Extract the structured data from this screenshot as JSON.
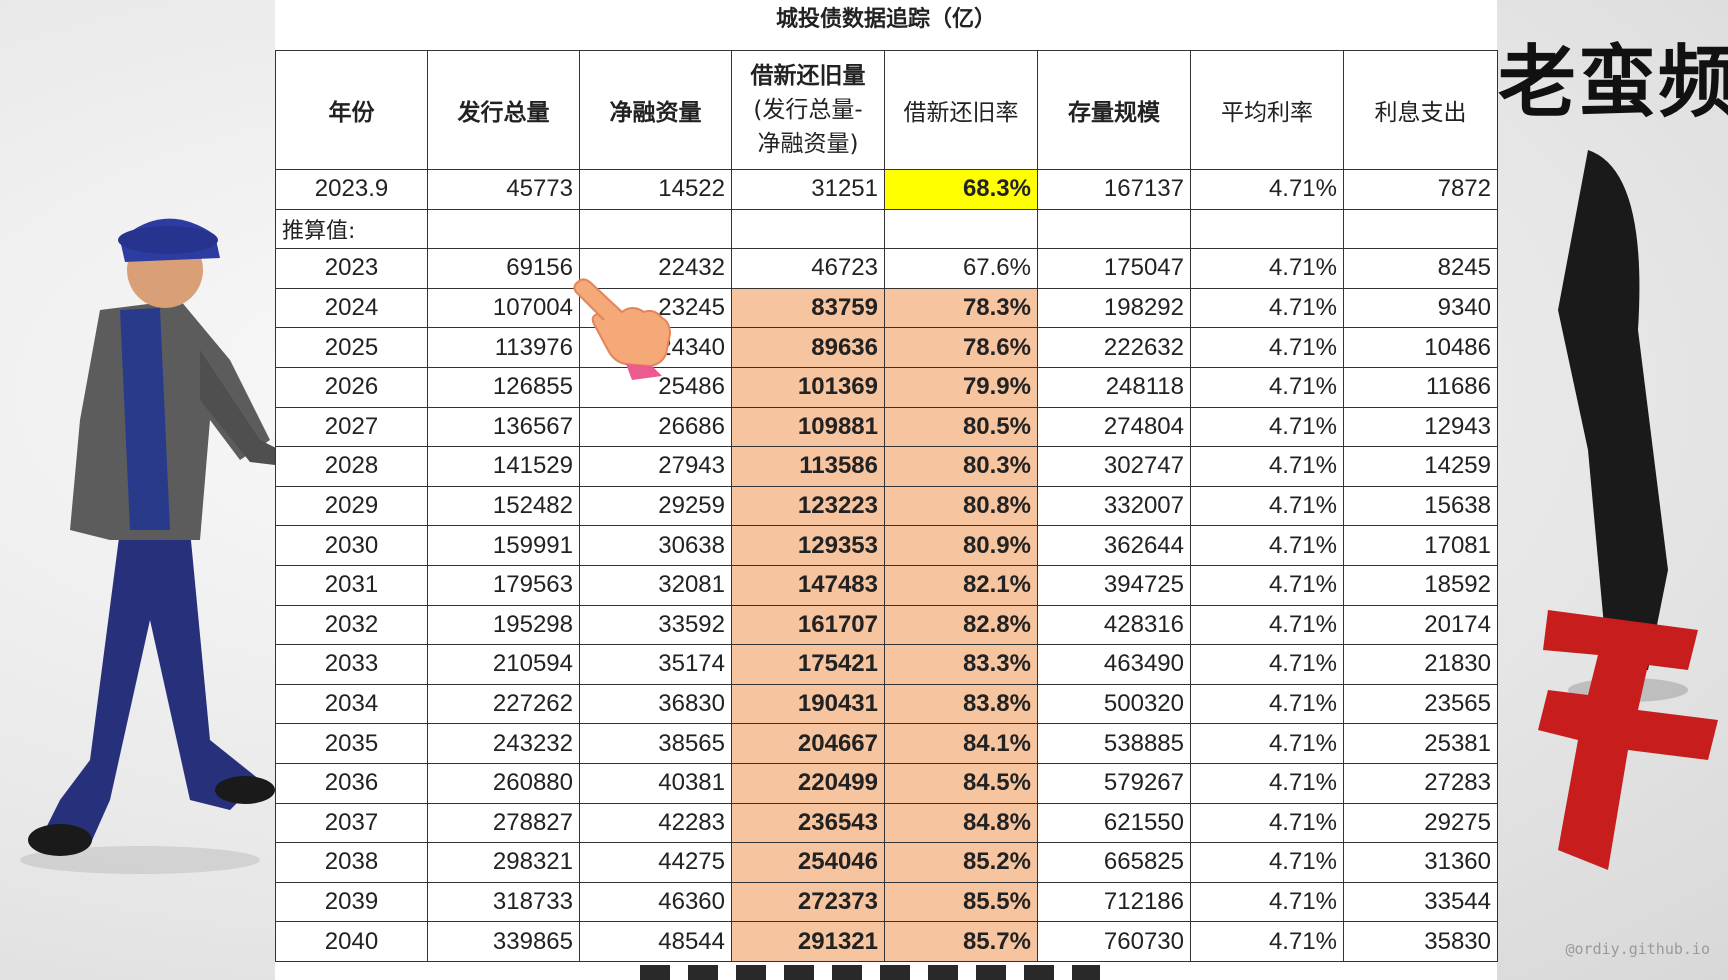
{
  "title": "城投债数据追踪（亿）",
  "decor": {
    "calligraphy": "老蛮频",
    "watermark": "@ordiy.github.io"
  },
  "headers": {
    "year": "年份",
    "issuance": "发行总量",
    "net_financing": "净融资量",
    "refinance_line1": "借新还旧量",
    "refinance_line2": "(发行总量-",
    "refinance_line3": "净融资量)",
    "refinance_rate": "借新还旧率",
    "stock": "存量规模",
    "avg_rate": "平均利率",
    "interest": "利息支出"
  },
  "actual_row": {
    "year": "2023.9",
    "issuance": "45773",
    "net_financing": "14522",
    "refinance": "31251",
    "refinance_rate": "68.3%",
    "stock": "167137",
    "avg_rate": "4.71%",
    "interest": "7872"
  },
  "section_label": "推算值:",
  "rows": [
    {
      "year": "2023",
      "issuance": "69156",
      "net_financing": "22432",
      "refinance": "46723",
      "refinance_rate": "67.6%",
      "stock": "175047",
      "avg_rate": "4.71%",
      "interest": "8245",
      "highlight": false
    },
    {
      "year": "2024",
      "issuance": "107004",
      "net_financing": "23245",
      "refinance": "83759",
      "refinance_rate": "78.3%",
      "stock": "198292",
      "avg_rate": "4.71%",
      "interest": "9340",
      "highlight": true
    },
    {
      "year": "2025",
      "issuance": "113976",
      "net_financing": "24340",
      "refinance": "89636",
      "refinance_rate": "78.6%",
      "stock": "222632",
      "avg_rate": "4.71%",
      "interest": "10486",
      "highlight": true
    },
    {
      "year": "2026",
      "issuance": "126855",
      "net_financing": "25486",
      "refinance": "101369",
      "refinance_rate": "79.9%",
      "stock": "248118",
      "avg_rate": "4.71%",
      "interest": "11686",
      "highlight": true
    },
    {
      "year": "2027",
      "issuance": "136567",
      "net_financing": "26686",
      "refinance": "109881",
      "refinance_rate": "80.5%",
      "stock": "274804",
      "avg_rate": "4.71%",
      "interest": "12943",
      "highlight": true
    },
    {
      "year": "2028",
      "issuance": "141529",
      "net_financing": "27943",
      "refinance": "113586",
      "refinance_rate": "80.3%",
      "stock": "302747",
      "avg_rate": "4.71%",
      "interest": "14259",
      "highlight": true
    },
    {
      "year": "2029",
      "issuance": "152482",
      "net_financing": "29259",
      "refinance": "123223",
      "refinance_rate": "80.8%",
      "stock": "332007",
      "avg_rate": "4.71%",
      "interest": "15638",
      "highlight": true
    },
    {
      "year": "2030",
      "issuance": "159991",
      "net_financing": "30638",
      "refinance": "129353",
      "refinance_rate": "80.9%",
      "stock": "362644",
      "avg_rate": "4.71%",
      "interest": "17081",
      "highlight": true
    },
    {
      "year": "2031",
      "issuance": "179563",
      "net_financing": "32081",
      "refinance": "147483",
      "refinance_rate": "82.1%",
      "stock": "394725",
      "avg_rate": "4.71%",
      "interest": "18592",
      "highlight": true
    },
    {
      "year": "2032",
      "issuance": "195298",
      "net_financing": "33592",
      "refinance": "161707",
      "refinance_rate": "82.8%",
      "stock": "428316",
      "avg_rate": "4.71%",
      "interest": "20174",
      "highlight": true
    },
    {
      "year": "2033",
      "issuance": "210594",
      "net_financing": "35174",
      "refinance": "175421",
      "refinance_rate": "83.3%",
      "stock": "463490",
      "avg_rate": "4.71%",
      "interest": "21830",
      "highlight": true
    },
    {
      "year": "2034",
      "issuance": "227262",
      "net_financing": "36830",
      "refinance": "190431",
      "refinance_rate": "83.8%",
      "stock": "500320",
      "avg_rate": "4.71%",
      "interest": "23565",
      "highlight": true
    },
    {
      "year": "2035",
      "issuance": "243232",
      "net_financing": "38565",
      "refinance": "204667",
      "refinance_rate": "84.1%",
      "stock": "538885",
      "avg_rate": "4.71%",
      "interest": "25381",
      "highlight": true
    },
    {
      "year": "2036",
      "issuance": "260880",
      "net_financing": "40381",
      "refinance": "220499",
      "refinance_rate": "84.5%",
      "stock": "579267",
      "avg_rate": "4.71%",
      "interest": "27283",
      "highlight": true
    },
    {
      "year": "2037",
      "issuance": "278827",
      "net_financing": "42283",
      "refinance": "236543",
      "refinance_rate": "84.8%",
      "stock": "621550",
      "avg_rate": "4.71%",
      "interest": "29275",
      "highlight": true
    },
    {
      "year": "2038",
      "issuance": "298321",
      "net_financing": "44275",
      "refinance": "254046",
      "refinance_rate": "85.2%",
      "stock": "665825",
      "avg_rate": "4.71%",
      "interest": "31360",
      "highlight": true
    },
    {
      "year": "2039",
      "issuance": "318733",
      "net_financing": "46360",
      "refinance": "272373",
      "refinance_rate": "85.5%",
      "stock": "712186",
      "avg_rate": "4.71%",
      "interest": "33544",
      "highlight": true
    },
    {
      "year": "2040",
      "issuance": "339865",
      "net_financing": "48544",
      "refinance": "291321",
      "refinance_rate": "85.7%",
      "stock": "760730",
      "avg_rate": "4.71%",
      "interest": "35830",
      "highlight": true
    }
  ],
  "colors": {
    "highlight_orange": "#f7c4a0",
    "highlight_yellow": "#ffff00"
  }
}
